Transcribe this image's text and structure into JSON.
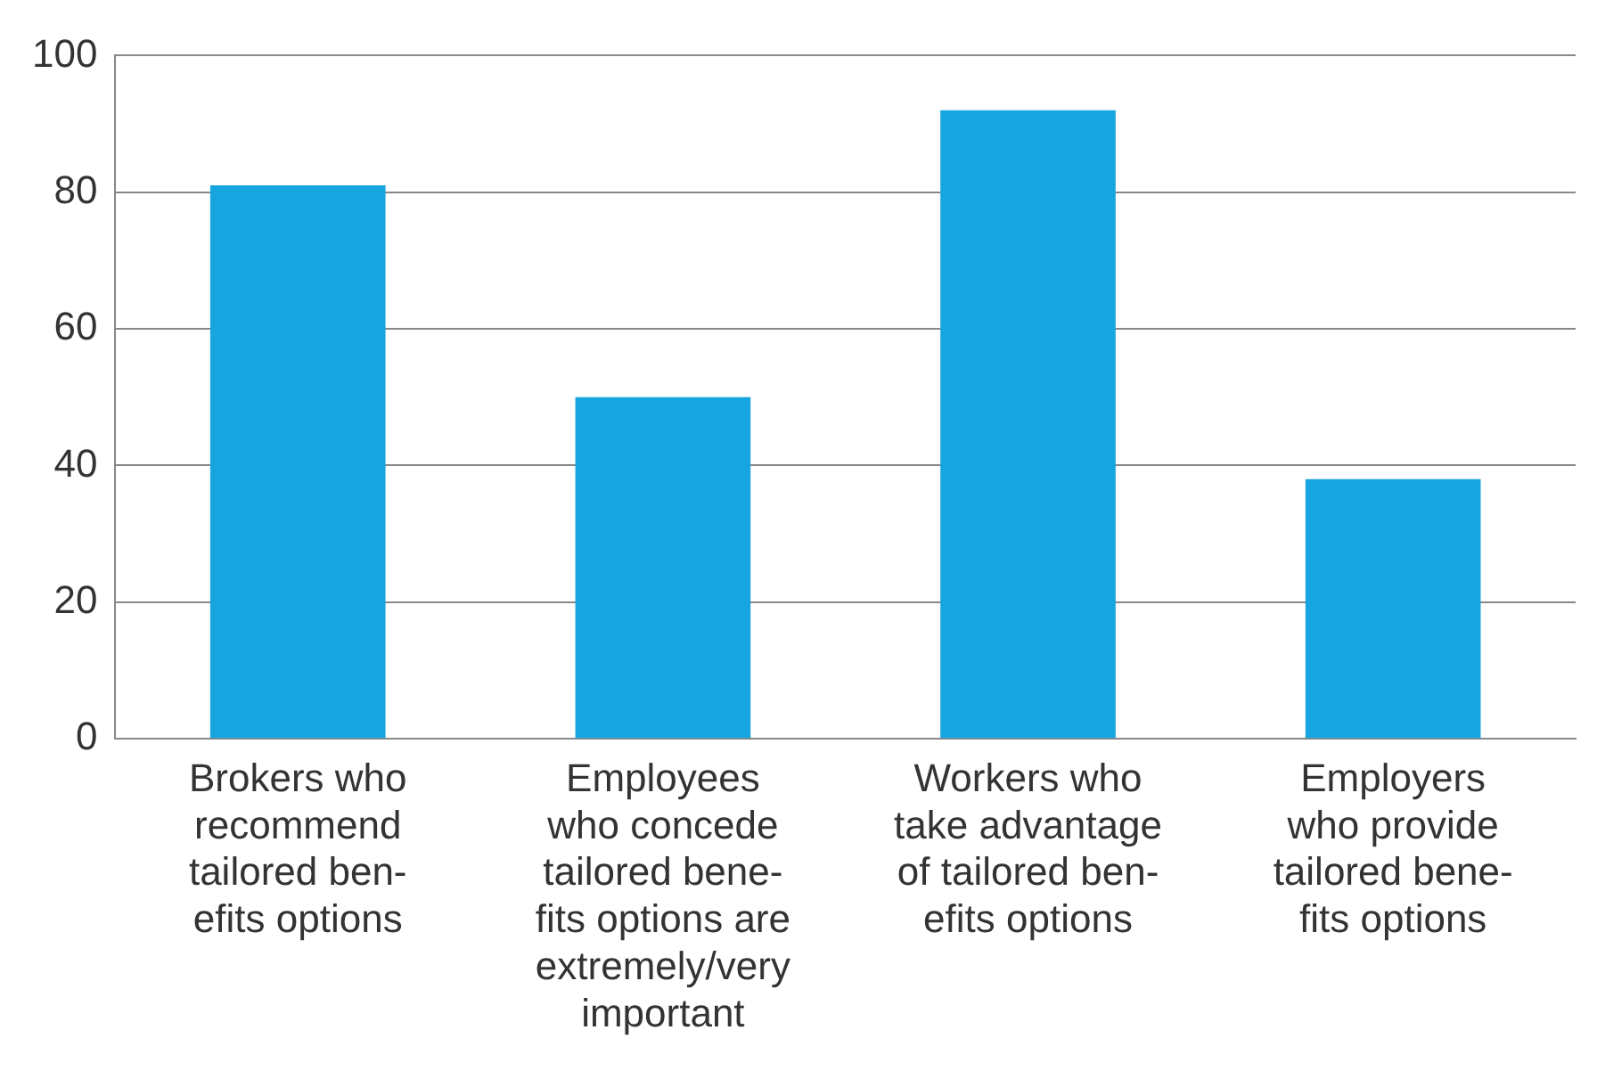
{
  "chart_data": {
    "type": "bar",
    "categories": [
      "Brokers who\nrecommend\ntailored ben-\nefits options",
      "Employees\nwho concede\ntailored bene-\nfits options are\nextremely/very\nimportant",
      "Workers who\ntake advantage\nof tailored ben-\nefits options",
      "Employers\nwho provide\ntailored bene-\nfits options"
    ],
    "values": [
      81,
      50,
      92,
      38
    ],
    "color": "#17a5df",
    "ylim": [
      0,
      100
    ],
    "yticks": [
      0,
      20,
      40,
      60,
      80,
      100
    ],
    "grid": "y"
  }
}
